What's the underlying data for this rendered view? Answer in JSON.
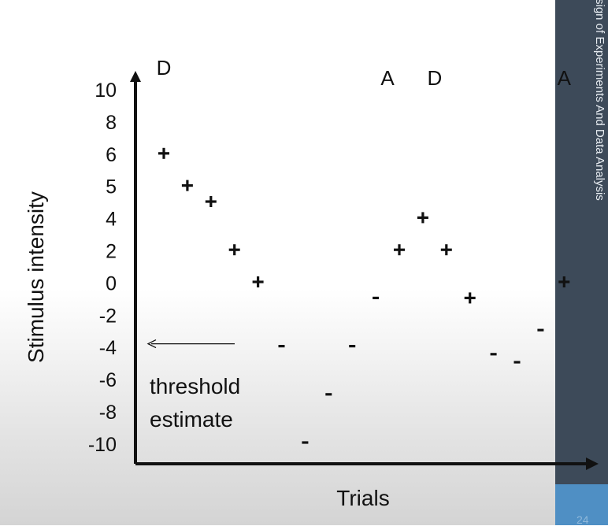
{
  "sidebar": {
    "title": "sign of Experiments And Data Analysis",
    "page_number": "24"
  },
  "chart_data": {
    "type": "scatter",
    "xlabel": "Trials",
    "ylabel": "Stimulus intensity",
    "y_ticks": [
      "10",
      "8",
      "6",
      "5",
      "4",
      "2",
      "0",
      "-2",
      "-4",
      "-6",
      "-8",
      "-10"
    ],
    "points": [
      {
        "trial": 1,
        "intensity": 8,
        "response": "+"
      },
      {
        "trial": 2,
        "intensity": 6,
        "response": "+"
      },
      {
        "trial": 3,
        "intensity": 5,
        "response": "+"
      },
      {
        "trial": 4,
        "intensity": 2,
        "response": "+"
      },
      {
        "trial": 5,
        "intensity": 0,
        "response": "+"
      },
      {
        "trial": 6,
        "intensity": -4,
        "response": "-"
      },
      {
        "trial": 7,
        "intensity": -10,
        "response": "-"
      },
      {
        "trial": 8,
        "intensity": -7,
        "response": "-"
      },
      {
        "trial": 9,
        "intensity": -4,
        "response": "-"
      },
      {
        "trial": 10,
        "intensity": -1,
        "response": "-"
      },
      {
        "trial": 11,
        "intensity": 2,
        "response": "+"
      },
      {
        "trial": 12,
        "intensity": 4,
        "response": "+"
      },
      {
        "trial": 13,
        "intensity": 2,
        "response": "+"
      },
      {
        "trial": 14,
        "intensity": -1,
        "response": "+"
      },
      {
        "trial": 15,
        "intensity": -4.5,
        "response": "-"
      },
      {
        "trial": 16,
        "intensity": -5,
        "response": "-"
      },
      {
        "trial": 17,
        "intensity": -3,
        "response": "-"
      },
      {
        "trial": 18,
        "intensity": 0,
        "response": "+"
      }
    ],
    "direction_labels": [
      {
        "text": "D",
        "trial": 1
      },
      {
        "text": "A",
        "trial": 10.5
      },
      {
        "text": "D",
        "trial": 12.5
      },
      {
        "text": "A",
        "trial": 18
      }
    ],
    "annotation": {
      "lines": [
        "threshold",
        "estimate"
      ],
      "points_to_intensity": -4
    }
  }
}
